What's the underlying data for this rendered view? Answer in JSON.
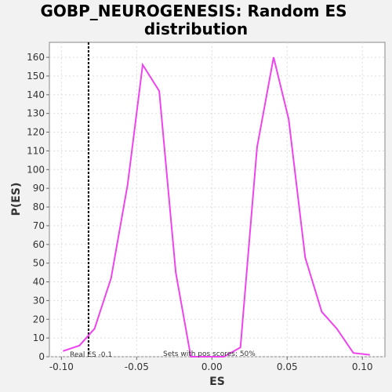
{
  "chart_data": {
    "type": "line",
    "title_line1": "GOBP_NEUROGENESIS: Random ES",
    "title_line2": "distribution",
    "xlabel": "ES",
    "ylabel": "P(ES)",
    "xlim": [
      -0.108,
      0.115
    ],
    "ylim": [
      0,
      168
    ],
    "x_ticks": [
      -0.1,
      -0.05,
      0.0,
      0.05,
      0.1
    ],
    "x_tick_labels": [
      "-0.10",
      "-0.05",
      "0.00",
      "0.05",
      "0.10"
    ],
    "y_ticks": [
      0,
      10,
      20,
      30,
      40,
      50,
      60,
      70,
      80,
      90,
      100,
      110,
      120,
      130,
      140,
      150,
      160
    ],
    "y_tick_labels": [
      "0",
      "10",
      "20",
      "30",
      "40",
      "50",
      "60",
      "70",
      "80",
      "90",
      "100",
      "110",
      "120",
      "130",
      "140",
      "150",
      "160"
    ],
    "grid": true,
    "line_color": "#ee44ee",
    "marker_color": "#000000",
    "series": [
      {
        "x": [
          -0.099,
          -0.088,
          -0.078,
          -0.067,
          -0.056,
          -0.046,
          -0.035,
          -0.024,
          -0.014,
          -0.003,
          0.008,
          0.019,
          0.03,
          0.041,
          0.051,
          0.062,
          0.073,
          0.083,
          0.094,
          0.105
        ],
        "y": [
          3,
          6,
          15,
          42,
          92,
          156,
          142,
          45,
          0,
          0,
          0,
          5,
          112,
          160,
          127,
          53,
          24,
          15,
          2,
          1
        ]
      }
    ],
    "real_es": -0.082,
    "real_es_label": "Real ES -0.1",
    "pos_scores_label": "Sets with pos scores: 50%"
  }
}
